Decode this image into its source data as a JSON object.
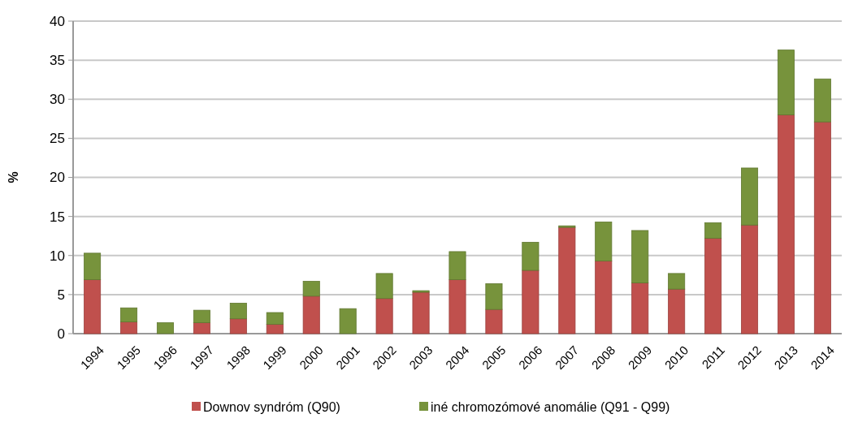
{
  "chart_data": {
    "type": "bar",
    "stacked": true,
    "ylabel": "%",
    "categories": [
      "1994",
      "1995",
      "1996",
      "1997",
      "1998",
      "1999",
      "2000",
      "2001",
      "2002",
      "2003",
      "2004",
      "2005",
      "2006",
      "2007",
      "2008",
      "2009",
      "2010",
      "2011",
      "2012",
      "2013",
      "2014"
    ],
    "series": [
      {
        "name": "Downov syndróm (Q90)",
        "color": "#c0504d",
        "values": [
          6.9,
          1.5,
          0,
          1.4,
          1.9,
          1.2,
          4.8,
          0,
          4.5,
          5.3,
          6.9,
          3.1,
          8.1,
          13.6,
          9.3,
          6.5,
          5.7,
          12.2,
          13.9,
          28.0,
          27.1
        ]
      },
      {
        "name": "iné chromozómové anomálie (Q91 - Q99)",
        "color": "#77933c",
        "values": [
          3.4,
          1.8,
          1.4,
          1.6,
          2.0,
          1.5,
          1.9,
          3.2,
          3.2,
          0.2,
          3.6,
          3.3,
          3.6,
          0.2,
          5.0,
          6.7,
          2.0,
          2.0,
          7.3,
          8.3,
          5.5
        ]
      }
    ],
    "ylim": [
      0,
      40
    ],
    "yticks": [
      0,
      5,
      10,
      15,
      20,
      25,
      30,
      35,
      40
    ],
    "grid": "y",
    "legend": "bottom"
  }
}
